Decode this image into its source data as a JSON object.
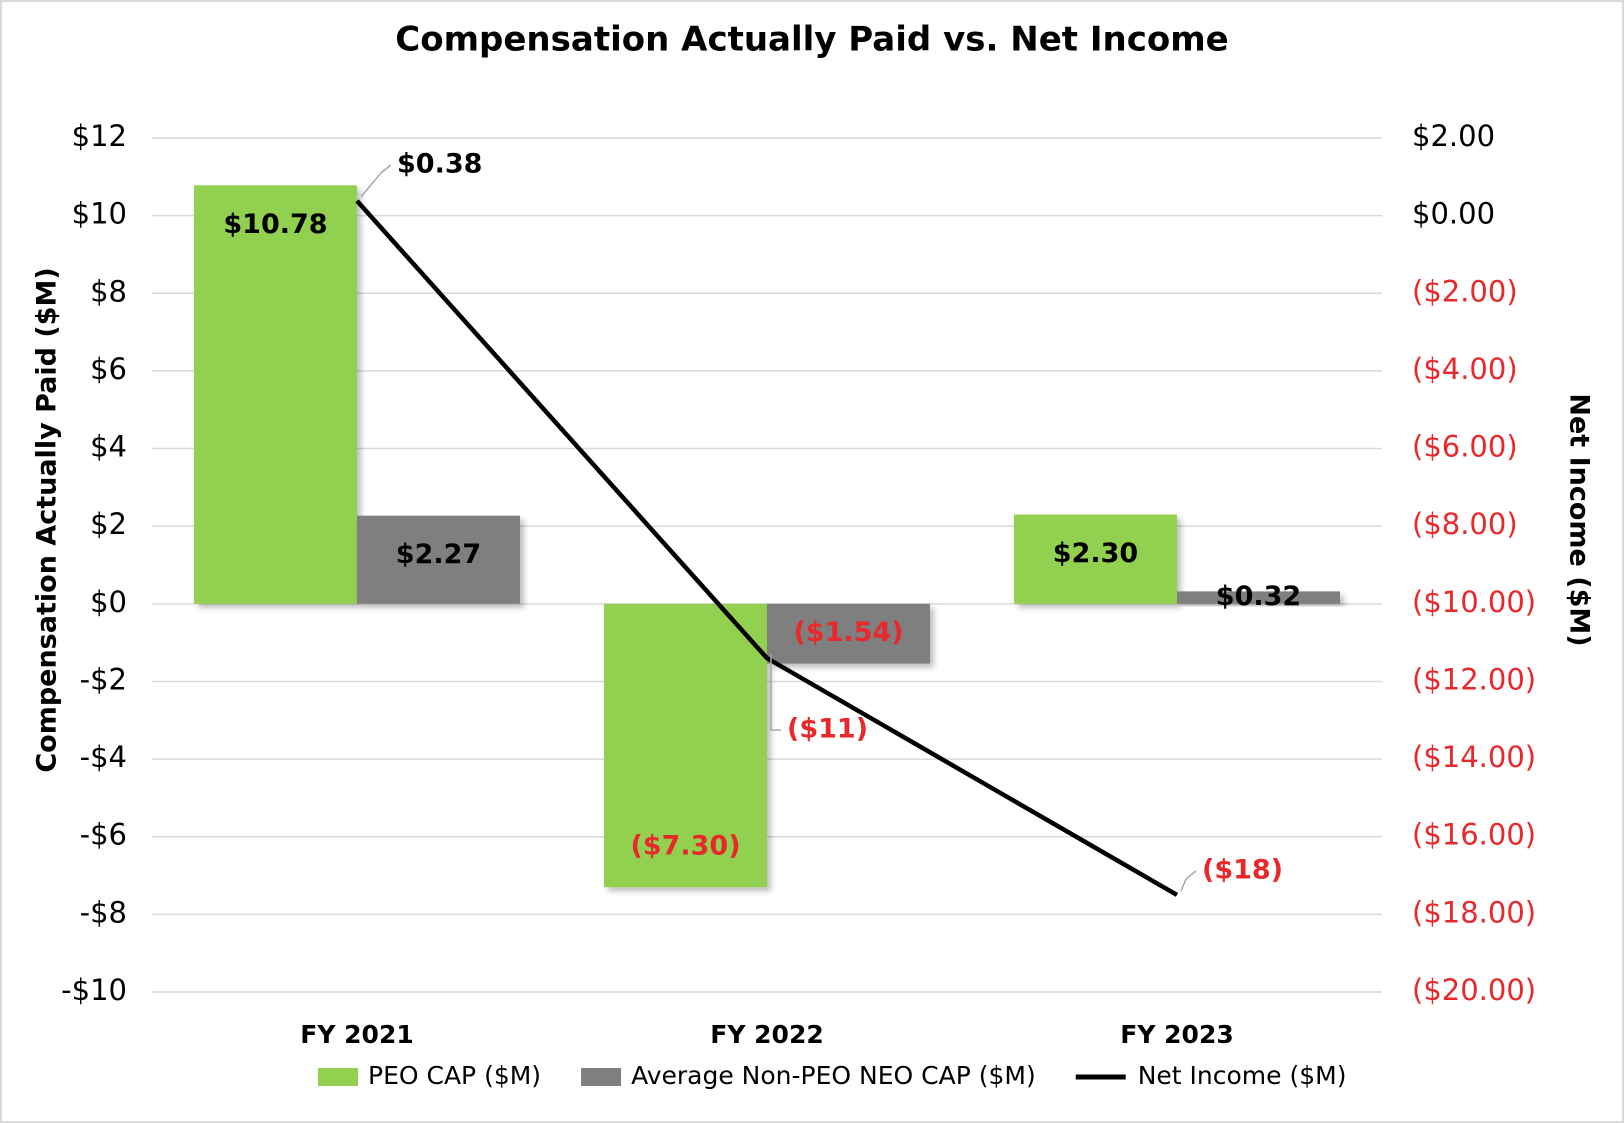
{
  "chart_data": {
    "type": "bar",
    "title": "Compensation Actually Paid vs. Net Income",
    "y_label": "Compensation Actually Paid ($M)",
    "y2_label": "Net Income ($M)",
    "categories": [
      "FY 2021",
      "FY 2022",
      "FY 2023"
    ],
    "series": [
      {
        "name": "PEO CAP ($M)",
        "type": "bar",
        "color": "#92d050",
        "values": [
          10.78,
          -7.3,
          2.3
        ],
        "value_labels": [
          "$10.78",
          "($7.30)",
          "$2.30"
        ]
      },
      {
        "name": "Average Non-PEO NEO CAP ($M)",
        "type": "bar",
        "color": "#7f7f7f",
        "values": [
          2.27,
          -1.54,
          0.32
        ],
        "value_labels": [
          "$2.27",
          "($1.54)",
          "$0.32"
        ]
      },
      {
        "name": "Net Income ($M)",
        "type": "line",
        "axis": "y2",
        "color": "#000000",
        "values": [
          0.38,
          -11.4,
          -17.5
        ],
        "value_labels": [
          "$0.38",
          "($11)",
          "($18)"
        ]
      }
    ],
    "ylim": [
      -10,
      12
    ],
    "yticks": [
      {
        "value": -10,
        "label": "-$10"
      },
      {
        "value": -8,
        "label": "-$8"
      },
      {
        "value": -6,
        "label": "-$6"
      },
      {
        "value": -4,
        "label": "-$4"
      },
      {
        "value": -2,
        "label": "-$2"
      },
      {
        "value": 0,
        "label": "$0"
      },
      {
        "value": 2,
        "label": "$2"
      },
      {
        "value": 4,
        "label": "$4"
      },
      {
        "value": 6,
        "label": "$6"
      },
      {
        "value": 8,
        "label": "$8"
      },
      {
        "value": 10,
        "label": "$10"
      },
      {
        "value": 12,
        "label": "$12"
      }
    ],
    "y2lim": [
      -20,
      2
    ],
    "y2ticks": [
      {
        "value": -20,
        "label": "($20.00)"
      },
      {
        "value": -18,
        "label": "($18.00)"
      },
      {
        "value": -16,
        "label": "($16.00)"
      },
      {
        "value": -14,
        "label": "($14.00)"
      },
      {
        "value": -12,
        "label": "($12.00)"
      },
      {
        "value": -10,
        "label": "($10.00)"
      },
      {
        "value": -8,
        "label": "($8.00)"
      },
      {
        "value": -6,
        "label": "($6.00)"
      },
      {
        "value": -4,
        "label": "($4.00)"
      },
      {
        "value": -2,
        "label": "($2.00)"
      },
      {
        "value": 0,
        "label": "$0.00"
      },
      {
        "value": 2,
        "label": "$2.00"
      }
    ],
    "grid": true,
    "legend": "bottom"
  }
}
